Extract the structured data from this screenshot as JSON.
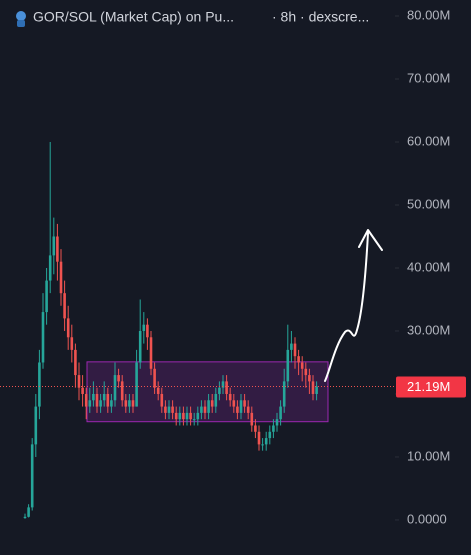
{
  "chart_data": {
    "type": "candlestick",
    "title": "GOR/SOL (Market Cap) on Pu...",
    "subtitle": "· 8h · dexscre...",
    "up_color": "#26a69a",
    "down_color": "#ef5350",
    "ylim": [
      -5.56,
      82.54
    ],
    "yticks": [
      {
        "value": 0,
        "label": "0.0000"
      },
      {
        "value": 10,
        "label": "10.00M"
      },
      {
        "value": 20,
        "label": "20.00M"
      },
      {
        "value": 30,
        "label": "30.00M"
      },
      {
        "value": 40,
        "label": "40.00M"
      },
      {
        "value": 50,
        "label": "50.00M"
      },
      {
        "value": 60,
        "label": "60.00M"
      },
      {
        "value": 70,
        "label": "70.00M"
      },
      {
        "value": 80,
        "label": "80.00M"
      }
    ],
    "last": {
      "value": 21.19,
      "label": "21.19M"
    },
    "box": [
      25.1,
      15.6
    ],
    "ohlc": [
      [
        0.3,
        1.0,
        0.2,
        0.5
      ],
      [
        0.5,
        2.5,
        0.4,
        2
      ],
      [
        2,
        13,
        1.5,
        12
      ],
      [
        12,
        20,
        10,
        18
      ],
      [
        18,
        27,
        16,
        25
      ],
      [
        25,
        36,
        24,
        33
      ],
      [
        33,
        40,
        31,
        38
      ],
      [
        38,
        60,
        36,
        42
      ],
      [
        42,
        48,
        39,
        45
      ],
      [
        45,
        47,
        38,
        41
      ],
      [
        41,
        43,
        34,
        36
      ],
      [
        36,
        38,
        30,
        32
      ],
      [
        32,
        34,
        27,
        29
      ],
      [
        29,
        31,
        25,
        27
      ],
      [
        27,
        28,
        21,
        23
      ],
      [
        23,
        25,
        19,
        21
      ],
      [
        21,
        23,
        18,
        20
      ],
      [
        20,
        21,
        16,
        18
      ],
      [
        18,
        21,
        17,
        19
      ],
      [
        19,
        22,
        18,
        20
      ],
      [
        20,
        21,
        17,
        18
      ],
      [
        18,
        20,
        17,
        19
      ],
      [
        19,
        22,
        18,
        20
      ],
      [
        20,
        21,
        17,
        18
      ],
      [
        18,
        20,
        17,
        19
      ],
      [
        19,
        25,
        18,
        23
      ],
      [
        23,
        24,
        21,
        22
      ],
      [
        22,
        23,
        18,
        19
      ],
      [
        19,
        20,
        17,
        18
      ],
      [
        18,
        20,
        17,
        19
      ],
      [
        19,
        20,
        17,
        18
      ],
      [
        18,
        27,
        18,
        25
      ],
      [
        25,
        35,
        24,
        30
      ],
      [
        30,
        33,
        28,
        31
      ],
      [
        31,
        32,
        27,
        29
      ],
      [
        29,
        30,
        23,
        24
      ],
      [
        24,
        25,
        20,
        21
      ],
      [
        21,
        22,
        19,
        20
      ],
      [
        20,
        21,
        17,
        18
      ],
      [
        18,
        19,
        16,
        17
      ],
      [
        17,
        19,
        16,
        18
      ],
      [
        18,
        19,
        16,
        17
      ],
      [
        17,
        18,
        15,
        16
      ],
      [
        16,
        18,
        15,
        17
      ],
      [
        17,
        18,
        15,
        16
      ],
      [
        16,
        18,
        15,
        17
      ],
      [
        17,
        18,
        15,
        16
      ],
      [
        16,
        17,
        15,
        16
      ],
      [
        16,
        18,
        15,
        17
      ],
      [
        17,
        19,
        16,
        18
      ],
      [
        18,
        19,
        16,
        17
      ],
      [
        17,
        20,
        16,
        19
      ],
      [
        19,
        20,
        17,
        18
      ],
      [
        18,
        21,
        17,
        20
      ],
      [
        20,
        22,
        19,
        21
      ],
      [
        21,
        23,
        20,
        22
      ],
      [
        22,
        23,
        19,
        20
      ],
      [
        20,
        21,
        18,
        19
      ],
      [
        19,
        20,
        17,
        18
      ],
      [
        18,
        19,
        16,
        17
      ],
      [
        17,
        20,
        16,
        19
      ],
      [
        19,
        20,
        17,
        18
      ],
      [
        18,
        19,
        16,
        17
      ],
      [
        17,
        18,
        14,
        15
      ],
      [
        15,
        16,
        13,
        14
      ],
      [
        14,
        15,
        11,
        12
      ],
      [
        12,
        13,
        11,
        12
      ],
      [
        12,
        14,
        11,
        13
      ],
      [
        13,
        15,
        12,
        14
      ],
      [
        14,
        16,
        13,
        15
      ],
      [
        15,
        17,
        14,
        16
      ],
      [
        16,
        19,
        15,
        18
      ],
      [
        18,
        24,
        17,
        22
      ],
      [
        22,
        31,
        21,
        27
      ],
      [
        27,
        30,
        25,
        28
      ],
      [
        28,
        29,
        24,
        26
      ],
      [
        26,
        27,
        23,
        25
      ],
      [
        25,
        26,
        22,
        24
      ],
      [
        24,
        25,
        21,
        23
      ],
      [
        23,
        24,
        20,
        22
      ],
      [
        22,
        23,
        19,
        20
      ],
      [
        20,
        22,
        19,
        21.19
      ]
    ]
  }
}
